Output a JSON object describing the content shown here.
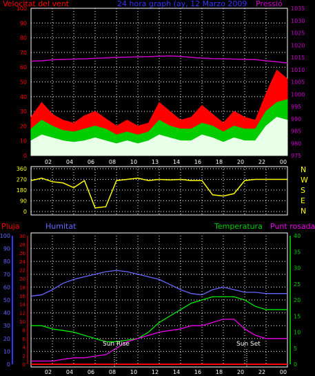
{
  "header": {
    "wind_title": "Velocitat del vent",
    "period_title": "24 hora graph (ay, 12 Marzo 2009",
    "pressure_title": "Pressió"
  },
  "bottom_header": {
    "rain": "Pluja",
    "humidity": "Humitat",
    "temperature": "Temperatura",
    "dew": "Punt rosada"
  },
  "annotations": {
    "sunrise": "Sun Rise",
    "sunset": "Sun Set"
  },
  "colors": {
    "wind": "#ff0000",
    "gust": "#00cc00",
    "avg": "#e8ffe8",
    "pressure": "#cc00cc",
    "direction": "#ffff00",
    "humidity": "#6666ff",
    "temperature": "#00ee00",
    "dew": "#ee00ee",
    "rain": "#ff0000",
    "grid": "#ffffff",
    "axis_left_bottom": "#3333ff",
    "axis_right_bottom": "#00aa00"
  },
  "chart_data": [
    {
      "type": "line",
      "name": "wind_pressure",
      "x": [
        0,
        1,
        2,
        3,
        4,
        5,
        6,
        7,
        8,
        9,
        10,
        11,
        12,
        13,
        14,
        15,
        16,
        17,
        18,
        19,
        20,
        21,
        22,
        23,
        24
      ],
      "x_ticks": [
        "02",
        "04",
        "06",
        "08",
        "10",
        "13",
        "14",
        "16",
        "18",
        "20",
        "22",
        "00"
      ],
      "y_left_ticks": [
        "0",
        "10",
        "20",
        "30",
        "40",
        "50",
        "60",
        "70",
        "80",
        "90",
        "100"
      ],
      "y_right_ticks": [
        "975",
        "980",
        "985",
        "990",
        "995",
        "1000",
        "1005",
        "1010",
        "1015",
        "1020",
        "1025",
        "1030",
        "1035"
      ],
      "ylim_left": [
        0,
        100
      ],
      "ylim_right": [
        975,
        1035
      ],
      "series": [
        {
          "key": "wind",
          "values": [
            26,
            36,
            28,
            24,
            22,
            27,
            30,
            25,
            20,
            24,
            20,
            22,
            36,
            30,
            24,
            26,
            34,
            28,
            22,
            30,
            26,
            24,
            42,
            58,
            52
          ]
        },
        {
          "key": "gust",
          "values": [
            18,
            24,
            20,
            17,
            16,
            18,
            20,
            18,
            14,
            16,
            14,
            16,
            24,
            20,
            18,
            18,
            22,
            20,
            16,
            20,
            18,
            18,
            30,
            36,
            38
          ]
        },
        {
          "key": "avg",
          "values": [
            10,
            14,
            12,
            10,
            9,
            10,
            12,
            10,
            8,
            10,
            8,
            10,
            14,
            12,
            10,
            10,
            14,
            12,
            9,
            12,
            10,
            10,
            20,
            26,
            24
          ]
        },
        {
          "key": "pressure",
          "values": [
            1013.5,
            1013.6,
            1014,
            1014.2,
            1014.3,
            1014.4,
            1014.6,
            1014.8,
            1015,
            1015.1,
            1015.2,
            1015.3,
            1015.5,
            1015.6,
            1015.4,
            1015,
            1014.7,
            1014.5,
            1014.4,
            1014.3,
            1014.2,
            1014.1,
            1013.6,
            1013.2,
            1012.7
          ]
        }
      ]
    },
    {
      "type": "line",
      "name": "wind_direction",
      "x": [
        0,
        1,
        2,
        3,
        4,
        5,
        6,
        7,
        8,
        9,
        10,
        11,
        12,
        13,
        14,
        15,
        16,
        17,
        18,
        19,
        20,
        21,
        22,
        23,
        24
      ],
      "y_ticks": [
        "360",
        "270",
        "180",
        "90",
        "0"
      ],
      "ylim": [
        0,
        360
      ],
      "compass": [
        "N",
        "W",
        "S",
        "E",
        "N"
      ],
      "series": [
        {
          "key": "direction",
          "values": [
            260,
            280,
            250,
            240,
            200,
            260,
            30,
            40,
            260,
            270,
            280,
            260,
            270,
            265,
            270,
            260,
            260,
            140,
            130,
            150,
            260,
            270,
            270,
            270,
            270
          ]
        }
      ]
    },
    {
      "type": "line",
      "name": "humidity_temperature",
      "x": [
        0,
        1,
        2,
        3,
        4,
        5,
        6,
        7,
        8,
        9,
        10,
        11,
        12,
        13,
        14,
        15,
        16,
        17,
        18,
        19,
        20,
        21,
        22,
        23,
        24
      ],
      "x_ticks": [
        "02",
        "04",
        "06",
        "08",
        "10",
        "12",
        "14",
        "16",
        "18",
        "20",
        "22",
        "00"
      ],
      "y_hum_ticks": [
        "0",
        "10",
        "20",
        "30",
        "40",
        "50",
        "60",
        "70",
        "80",
        "90",
        "100"
      ],
      "y_mm_ticks": [
        "0",
        "2",
        "4",
        "6",
        "8",
        "10",
        "12",
        "14",
        "16",
        "18",
        "20",
        "22",
        "24",
        "26",
        "28",
        "30"
      ],
      "y_temp_ticks": [
        "0",
        "5",
        "10",
        "15",
        "20",
        "25",
        "30",
        "35",
        "40"
      ],
      "ylim_hum": [
        0,
        100
      ],
      "ylim_temp": [
        0,
        40
      ],
      "series": [
        {
          "key": "humidity",
          "values": [
            53,
            54,
            58,
            63,
            66,
            68,
            70,
            72,
            73,
            72,
            70,
            68,
            66,
            62,
            58,
            55,
            54,
            58,
            60,
            58,
            56,
            56,
            55,
            55,
            55
          ]
        },
        {
          "key": "temperature",
          "values": [
            12,
            12,
            11,
            10.5,
            10,
            9,
            8,
            7,
            7,
            7.5,
            8,
            10,
            13,
            15,
            17,
            19,
            20,
            21,
            21,
            21,
            20,
            18,
            17,
            17,
            17
          ]
        },
        {
          "key": "dew",
          "values": [
            1,
            1,
            1,
            1.5,
            2,
            2,
            2.5,
            3,
            5,
            7,
            8,
            9,
            10,
            10.5,
            11,
            12,
            12,
            13,
            14,
            14,
            11,
            9,
            8,
            8,
            8
          ]
        },
        {
          "key": "rain",
          "values": [
            0,
            0,
            0,
            0,
            0,
            0,
            0,
            0,
            0,
            0,
            0,
            0,
            0,
            0,
            0,
            0,
            0,
            0,
            0,
            0,
            0,
            0,
            0,
            0,
            0
          ]
        }
      ]
    }
  ]
}
